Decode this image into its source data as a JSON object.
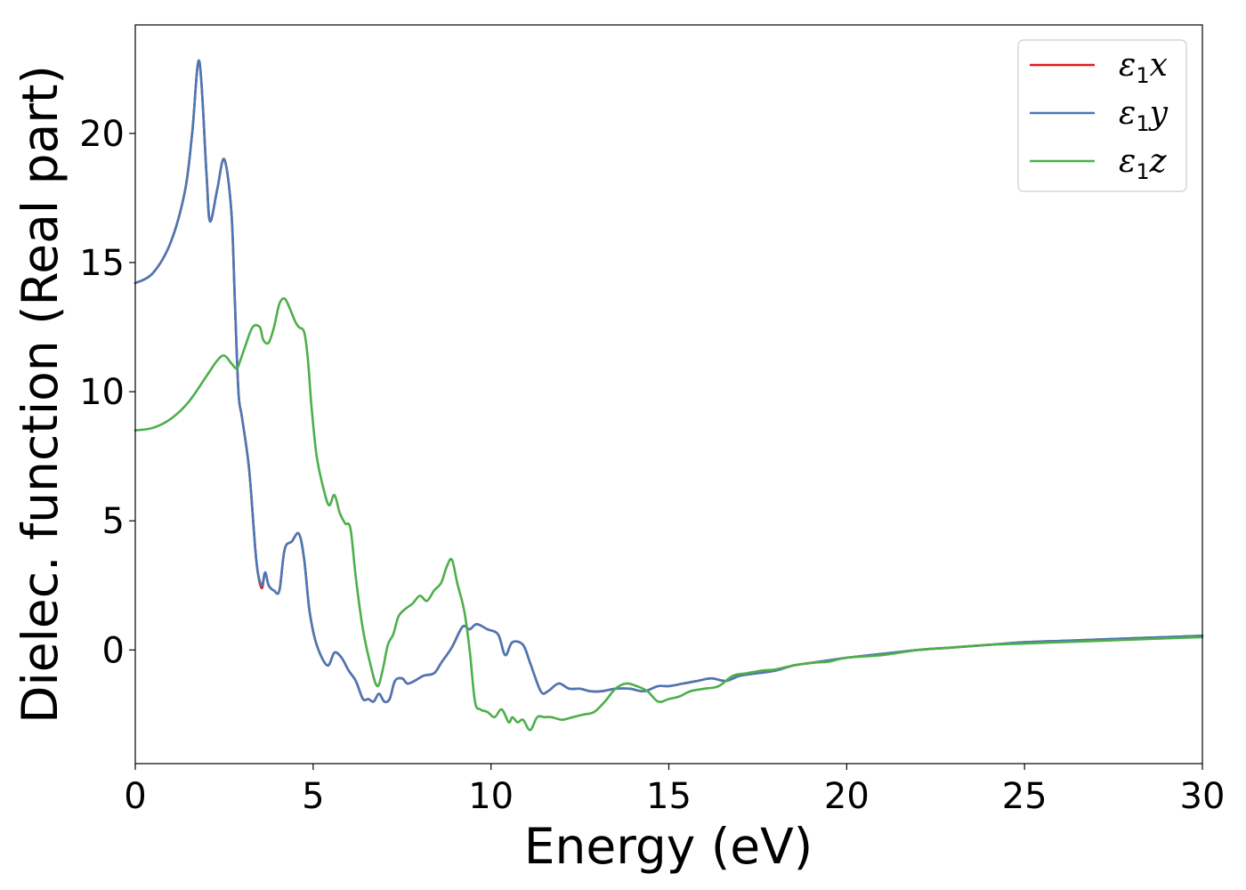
{
  "chart_data": {
    "type": "line",
    "xlabel": "Energy (eV)",
    "ylabel": "Dielec. function (Real part)",
    "xlim": [
      0,
      30
    ],
    "ylim": [
      -4.4,
      24.2
    ],
    "xticks": [
      0,
      5,
      10,
      15,
      20,
      25,
      30
    ],
    "yticks": [
      0,
      5,
      10,
      15,
      20
    ],
    "grid": false,
    "legend_position": "top-right",
    "series": [
      {
        "name": "ε1x",
        "legend": {
          "base": "ε",
          "sub": "1",
          "var": "x"
        },
        "color": "#e41a1c",
        "x": [
          0,
          0.5,
          1.0,
          1.4,
          1.6,
          1.8,
          2.0,
          2.1,
          2.3,
          2.5,
          2.7,
          2.8,
          2.9,
          3.0,
          3.2,
          3.4,
          3.55,
          3.65,
          3.75,
          3.9,
          4.05,
          4.2,
          4.4,
          4.6,
          4.75,
          4.9,
          5.1,
          5.4,
          5.6,
          5.8,
          6.0,
          6.2,
          6.4,
          6.55,
          6.7,
          6.85,
          7.0,
          7.15,
          7.3,
          7.5,
          7.65,
          7.85,
          8.1,
          8.4,
          8.6,
          8.9,
          9.2,
          9.4,
          9.6,
          9.9,
          10.2,
          10.4,
          10.6,
          10.9,
          11.1,
          11.4,
          11.6,
          11.9,
          12.2,
          12.5,
          12.8,
          13.1,
          13.5,
          13.9,
          14.3,
          14.7,
          15.0,
          15.4,
          15.8,
          16.2,
          16.6,
          17.0,
          17.5,
          18.0,
          18.5,
          19.0,
          19.5,
          20.0,
          21.0,
          22.0,
          23.0,
          24.0,
          25.0,
          26.0,
          27.0,
          28.0,
          29.0,
          30.0
        ],
        "y": [
          14.2,
          14.6,
          15.8,
          17.8,
          20.0,
          22.8,
          18.5,
          16.6,
          17.8,
          19.0,
          17.0,
          13.5,
          10.0,
          9.0,
          7.0,
          3.5,
          2.4,
          3.0,
          2.5,
          2.3,
          2.3,
          3.9,
          4.2,
          4.5,
          3.5,
          1.5,
          0.2,
          -0.6,
          -0.1,
          -0.3,
          -0.8,
          -1.2,
          -1.9,
          -1.9,
          -2.0,
          -1.7,
          -2.0,
          -1.9,
          -1.2,
          -1.1,
          -1.3,
          -1.2,
          -1.0,
          -0.9,
          -0.5,
          0.1,
          0.9,
          0.8,
          1.0,
          0.8,
          0.6,
          -0.2,
          0.3,
          0.2,
          -0.5,
          -1.6,
          -1.6,
          -1.3,
          -1.5,
          -1.5,
          -1.6,
          -1.6,
          -1.5,
          -1.5,
          -1.6,
          -1.4,
          -1.4,
          -1.3,
          -1.2,
          -1.1,
          -1.2,
          -1.0,
          -0.9,
          -0.8,
          -0.6,
          -0.5,
          -0.4,
          -0.3,
          -0.15,
          0.0,
          0.1,
          0.2,
          0.3,
          0.35,
          0.4,
          0.45,
          0.5,
          0.55
        ]
      },
      {
        "name": "ε1y",
        "legend": {
          "base": "ε",
          "sub": "1",
          "var": "y"
        },
        "color": "#4a78b6",
        "x": [
          0,
          0.5,
          1.0,
          1.4,
          1.6,
          1.8,
          2.0,
          2.1,
          2.3,
          2.5,
          2.7,
          2.8,
          2.9,
          3.0,
          3.2,
          3.4,
          3.55,
          3.65,
          3.75,
          3.9,
          4.05,
          4.2,
          4.4,
          4.6,
          4.75,
          4.9,
          5.1,
          5.4,
          5.6,
          5.8,
          6.0,
          6.2,
          6.4,
          6.55,
          6.7,
          6.85,
          7.0,
          7.15,
          7.3,
          7.5,
          7.65,
          7.85,
          8.1,
          8.4,
          8.6,
          8.9,
          9.2,
          9.4,
          9.6,
          9.9,
          10.2,
          10.4,
          10.6,
          10.9,
          11.1,
          11.4,
          11.6,
          11.9,
          12.2,
          12.5,
          12.8,
          13.1,
          13.5,
          13.9,
          14.3,
          14.7,
          15.0,
          15.4,
          15.8,
          16.2,
          16.6,
          17.0,
          17.5,
          18.0,
          18.5,
          19.0,
          19.5,
          20.0,
          21.0,
          22.0,
          23.0,
          24.0,
          25.0,
          26.0,
          27.0,
          28.0,
          29.0,
          30.0
        ],
        "y": [
          14.2,
          14.6,
          15.8,
          17.8,
          20.0,
          22.8,
          18.5,
          16.6,
          17.8,
          19.0,
          17.0,
          13.5,
          10.0,
          9.0,
          7.0,
          3.5,
          2.5,
          3.0,
          2.5,
          2.3,
          2.3,
          3.9,
          4.2,
          4.5,
          3.5,
          1.5,
          0.2,
          -0.6,
          -0.1,
          -0.3,
          -0.8,
          -1.2,
          -1.9,
          -1.9,
          -2.0,
          -1.7,
          -2.0,
          -1.9,
          -1.2,
          -1.1,
          -1.3,
          -1.2,
          -1.0,
          -0.9,
          -0.5,
          0.1,
          0.9,
          0.8,
          1.0,
          0.8,
          0.6,
          -0.2,
          0.3,
          0.2,
          -0.5,
          -1.6,
          -1.6,
          -1.3,
          -1.5,
          -1.5,
          -1.6,
          -1.6,
          -1.5,
          -1.5,
          -1.6,
          -1.4,
          -1.4,
          -1.3,
          -1.2,
          -1.1,
          -1.2,
          -1.0,
          -0.9,
          -0.8,
          -0.6,
          -0.5,
          -0.4,
          -0.3,
          -0.15,
          0.0,
          0.1,
          0.2,
          0.3,
          0.35,
          0.4,
          0.45,
          0.5,
          0.55
        ]
      },
      {
        "name": "ε1z",
        "legend": {
          "base": "ε",
          "sub": "1",
          "var": "z"
        },
        "color": "#4daf4a",
        "x": [
          0,
          0.5,
          1.0,
          1.5,
          2.0,
          2.3,
          2.5,
          2.7,
          2.85,
          2.95,
          3.1,
          3.3,
          3.5,
          3.6,
          3.75,
          3.9,
          4.05,
          4.2,
          4.35,
          4.5,
          4.6,
          4.75,
          4.85,
          4.95,
          5.1,
          5.3,
          5.45,
          5.6,
          5.75,
          5.9,
          6.05,
          6.2,
          6.4,
          6.6,
          6.8,
          6.95,
          7.1,
          7.25,
          7.4,
          7.6,
          7.8,
          8.0,
          8.2,
          8.4,
          8.6,
          8.75,
          8.9,
          9.05,
          9.25,
          9.4,
          9.55,
          9.7,
          9.9,
          10.1,
          10.3,
          10.5,
          10.6,
          10.75,
          10.9,
          11.1,
          11.3,
          11.5,
          11.7,
          12.0,
          12.3,
          12.6,
          12.9,
          13.2,
          13.5,
          13.8,
          14.1,
          14.4,
          14.7,
          15.0,
          15.3,
          15.6,
          16.0,
          16.4,
          16.8,
          17.2,
          17.6,
          18.0,
          18.5,
          19.0,
          19.5,
          20.0,
          21.0,
          22.0,
          23.0,
          24.0,
          25.0,
          26.0,
          27.0,
          28.0,
          29.0,
          30.0
        ],
        "y": [
          8.5,
          8.6,
          8.95,
          9.6,
          10.6,
          11.2,
          11.4,
          11.1,
          10.9,
          11.2,
          11.8,
          12.5,
          12.5,
          12.0,
          11.9,
          12.5,
          13.4,
          13.6,
          13.2,
          12.7,
          12.5,
          12.3,
          11.3,
          9.5,
          7.5,
          6.2,
          5.6,
          6.0,
          5.3,
          4.9,
          4.7,
          2.8,
          0.8,
          -0.5,
          -1.4,
          -0.8,
          0.2,
          0.6,
          1.3,
          1.6,
          1.8,
          2.1,
          1.9,
          2.3,
          2.6,
          3.2,
          3.5,
          2.6,
          1.5,
          0.0,
          -2.0,
          -2.3,
          -2.4,
          -2.6,
          -2.3,
          -2.8,
          -2.6,
          -2.8,
          -2.7,
          -3.1,
          -2.6,
          -2.6,
          -2.6,
          -2.7,
          -2.6,
          -2.5,
          -2.4,
          -2.0,
          -1.5,
          -1.3,
          -1.4,
          -1.6,
          -2.0,
          -1.9,
          -1.8,
          -1.6,
          -1.5,
          -1.4,
          -1.0,
          -0.9,
          -0.8,
          -0.75,
          -0.6,
          -0.5,
          -0.45,
          -0.3,
          -0.2,
          0.0,
          0.1,
          0.2,
          0.25,
          0.3,
          0.35,
          0.4,
          0.45,
          0.5
        ]
      }
    ]
  }
}
